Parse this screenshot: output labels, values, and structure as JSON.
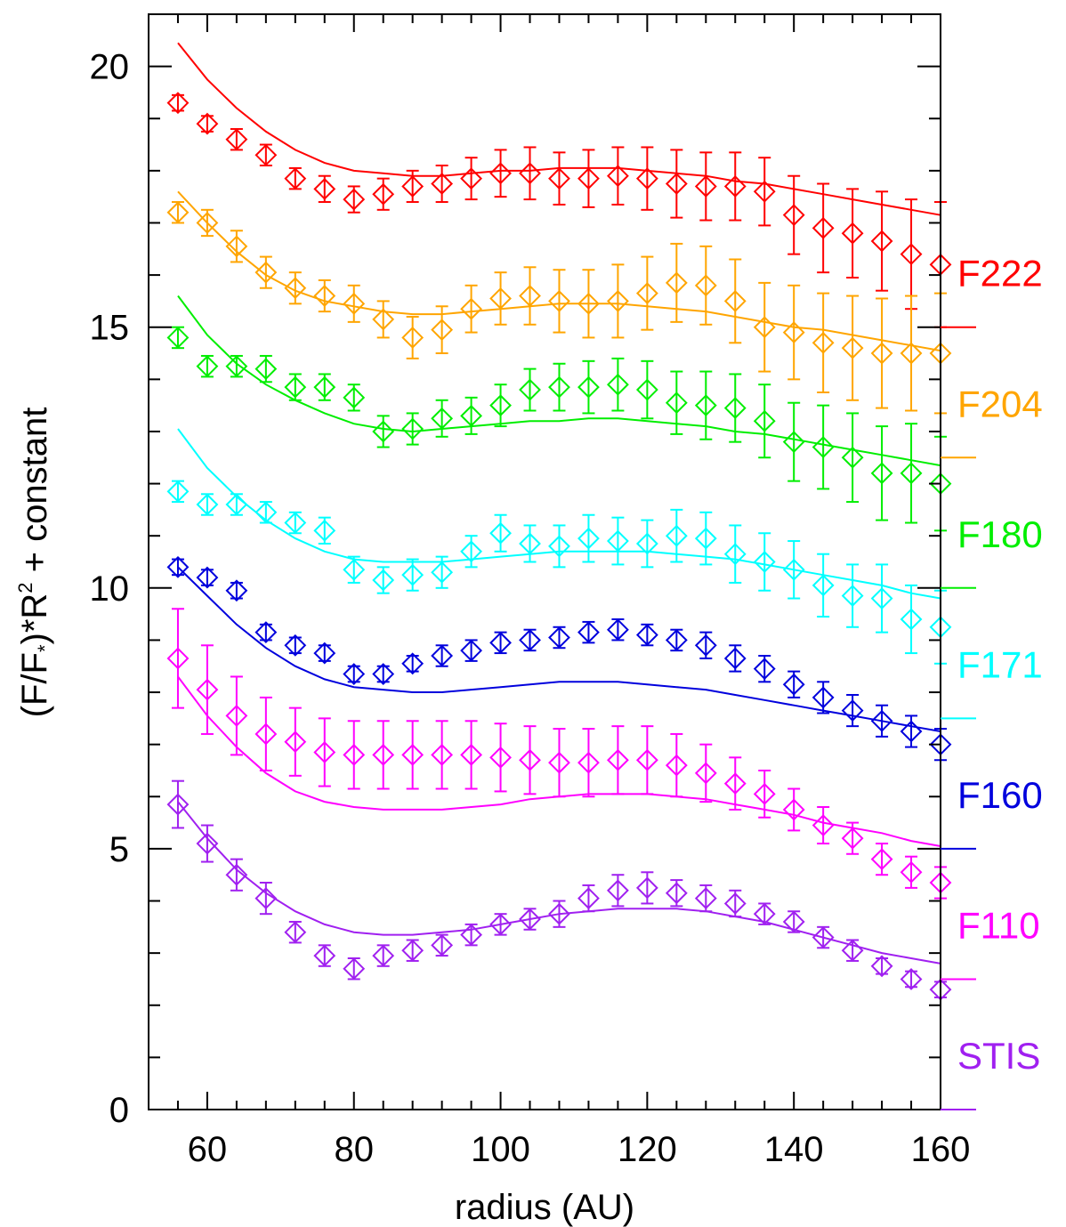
{
  "chart_data": {
    "type": "scatter",
    "title": "",
    "xlabel": "radius (AU)",
    "ylabel": {
      "main": "(F/F",
      "sub": "*",
      "mid": ")*R",
      "sup": "2",
      "tail": " + constant"
    },
    "xlim": [
      52,
      160
    ],
    "ylim": [
      0,
      21
    ],
    "xticks": [
      60,
      80,
      100,
      120,
      140,
      160
    ],
    "yticks": [
      0,
      5,
      10,
      15,
      20
    ],
    "x_minor_step": 4,
    "y_minor_step": 1,
    "grid": false,
    "legend_placement": "right",
    "x": [
      56,
      60,
      64,
      68,
      72,
      76,
      80,
      84,
      88,
      92,
      96,
      100,
      104,
      108,
      112,
      116,
      120,
      124,
      128,
      132,
      136,
      140,
      144,
      148,
      152,
      156,
      160
    ],
    "series": [
      {
        "name": "F222",
        "color": "#ff0000",
        "baseline": 15.0,
        "values": [
          19.3,
          18.9,
          18.6,
          18.3,
          17.85,
          17.65,
          17.45,
          17.55,
          17.7,
          17.75,
          17.85,
          17.95,
          17.95,
          17.85,
          17.85,
          17.9,
          17.85,
          17.75,
          17.7,
          17.7,
          17.6,
          17.15,
          16.9,
          16.8,
          16.65,
          16.4,
          16.2
        ],
        "errors": [
          0.15,
          0.15,
          0.2,
          0.2,
          0.2,
          0.25,
          0.25,
          0.3,
          0.3,
          0.35,
          0.4,
          0.45,
          0.5,
          0.5,
          0.55,
          0.55,
          0.6,
          0.65,
          0.65,
          0.65,
          0.65,
          0.75,
          0.85,
          0.85,
          0.95,
          1.05,
          1.2
        ],
        "model_x": [
          56,
          60,
          64,
          68,
          72,
          76,
          80,
          84,
          88,
          92,
          96,
          100,
          104,
          108,
          112,
          116,
          120,
          124,
          128,
          132,
          136,
          140,
          144,
          148,
          152,
          156,
          160
        ],
        "model_y": [
          20.45,
          19.75,
          19.2,
          18.75,
          18.4,
          18.15,
          18.0,
          17.95,
          17.9,
          17.9,
          17.95,
          18.0,
          18.0,
          18.05,
          18.05,
          18.05,
          18.0,
          17.95,
          17.9,
          17.8,
          17.75,
          17.65,
          17.55,
          17.45,
          17.35,
          17.25,
          17.15
        ]
      },
      {
        "name": "F204",
        "color": "#ffa500",
        "baseline": 12.5,
        "values": [
          17.2,
          17.0,
          16.55,
          16.05,
          15.75,
          15.6,
          15.45,
          15.15,
          14.8,
          14.95,
          15.35,
          15.55,
          15.6,
          15.5,
          15.45,
          15.5,
          15.65,
          15.85,
          15.8,
          15.5,
          15.0,
          14.9,
          14.7,
          14.6,
          14.5,
          14.5,
          14.5
        ],
        "errors": [
          0.2,
          0.25,
          0.3,
          0.3,
          0.3,
          0.3,
          0.35,
          0.35,
          0.4,
          0.45,
          0.45,
          0.5,
          0.55,
          0.6,
          0.65,
          0.7,
          0.7,
          0.75,
          0.75,
          0.8,
          0.85,
          0.9,
          0.95,
          1.0,
          1.05,
          1.1,
          1.15
        ],
        "model_x": [
          56,
          60,
          64,
          68,
          72,
          76,
          80,
          84,
          88,
          92,
          96,
          100,
          104,
          108,
          112,
          116,
          120,
          124,
          128,
          132,
          136,
          140,
          144,
          148,
          152,
          156,
          160
        ],
        "model_y": [
          17.6,
          17.0,
          16.45,
          16.0,
          15.7,
          15.5,
          15.4,
          15.3,
          15.25,
          15.25,
          15.3,
          15.35,
          15.4,
          15.45,
          15.45,
          15.45,
          15.4,
          15.35,
          15.3,
          15.2,
          15.1,
          15.0,
          14.95,
          14.85,
          14.75,
          14.65,
          14.55
        ]
      },
      {
        "name": "F180",
        "color": "#00ee00",
        "baseline": 10.0,
        "values": [
          14.8,
          14.25,
          14.25,
          14.2,
          13.85,
          13.85,
          13.65,
          13.0,
          13.05,
          13.25,
          13.3,
          13.5,
          13.8,
          13.85,
          13.85,
          13.9,
          13.8,
          13.55,
          13.5,
          13.45,
          13.2,
          12.8,
          12.7,
          12.5,
          12.2,
          12.2,
          12.0
        ],
        "errors": [
          0.2,
          0.2,
          0.2,
          0.25,
          0.25,
          0.25,
          0.25,
          0.3,
          0.3,
          0.35,
          0.35,
          0.4,
          0.4,
          0.45,
          0.5,
          0.5,
          0.55,
          0.6,
          0.65,
          0.65,
          0.7,
          0.75,
          0.8,
          0.85,
          0.9,
          0.95,
          0.9
        ],
        "model_x": [
          56,
          60,
          64,
          68,
          72,
          76,
          80,
          84,
          88,
          92,
          96,
          100,
          104,
          108,
          112,
          116,
          120,
          124,
          128,
          132,
          136,
          140,
          144,
          148,
          152,
          156,
          160
        ],
        "model_y": [
          15.6,
          14.85,
          14.3,
          13.9,
          13.6,
          13.35,
          13.15,
          13.05,
          13.0,
          13.05,
          13.1,
          13.15,
          13.2,
          13.2,
          13.25,
          13.25,
          13.2,
          13.15,
          13.1,
          13.0,
          12.95,
          12.85,
          12.75,
          12.65,
          12.55,
          12.45,
          12.35
        ]
      },
      {
        "name": "F171",
        "color": "#00ffff",
        "baseline": 7.5,
        "values": [
          11.85,
          11.6,
          11.6,
          11.45,
          11.25,
          11.1,
          10.35,
          10.15,
          10.25,
          10.3,
          10.7,
          11.05,
          10.85,
          10.8,
          10.95,
          10.9,
          10.85,
          11.0,
          10.95,
          10.65,
          10.5,
          10.35,
          10.05,
          9.85,
          9.8,
          9.4,
          9.25
        ],
        "errors": [
          0.2,
          0.2,
          0.2,
          0.2,
          0.2,
          0.25,
          0.25,
          0.25,
          0.3,
          0.3,
          0.3,
          0.35,
          0.35,
          0.4,
          0.45,
          0.45,
          0.45,
          0.5,
          0.5,
          0.55,
          0.55,
          0.55,
          0.6,
          0.6,
          0.65,
          0.65,
          0.7
        ],
        "model_x": [
          56,
          60,
          64,
          68,
          72,
          76,
          80,
          84,
          88,
          92,
          96,
          100,
          104,
          108,
          112,
          116,
          120,
          124,
          128,
          132,
          136,
          140,
          144,
          148,
          152,
          156,
          160
        ],
        "model_y": [
          13.05,
          12.3,
          11.75,
          11.3,
          10.95,
          10.7,
          10.55,
          10.5,
          10.5,
          10.5,
          10.55,
          10.6,
          10.65,
          10.7,
          10.7,
          10.7,
          10.7,
          10.65,
          10.6,
          10.55,
          10.45,
          10.35,
          10.25,
          10.15,
          10.05,
          9.9,
          9.8
        ]
      },
      {
        "name": "F160",
        "color": "#0000dd",
        "baseline": 5.0,
        "values": [
          10.4,
          10.2,
          9.95,
          9.15,
          8.9,
          8.75,
          8.35,
          8.35,
          8.55,
          8.7,
          8.8,
          8.95,
          9.0,
          9.05,
          9.15,
          9.2,
          9.1,
          9.0,
          8.9,
          8.65,
          8.45,
          8.15,
          7.9,
          7.65,
          7.45,
          7.25,
          7.0
        ],
        "errors": [
          0.15,
          0.15,
          0.15,
          0.15,
          0.15,
          0.15,
          0.15,
          0.15,
          0.15,
          0.2,
          0.2,
          0.2,
          0.2,
          0.2,
          0.2,
          0.2,
          0.2,
          0.2,
          0.25,
          0.25,
          0.25,
          0.25,
          0.3,
          0.3,
          0.3,
          0.3,
          0.3
        ],
        "model_x": [
          56,
          60,
          64,
          68,
          72,
          76,
          80,
          84,
          88,
          92,
          96,
          100,
          104,
          108,
          112,
          116,
          120,
          124,
          128,
          132,
          136,
          140,
          144,
          148,
          152,
          156,
          160
        ],
        "model_y": [
          10.4,
          9.85,
          9.3,
          8.85,
          8.5,
          8.25,
          8.1,
          8.05,
          8.0,
          8.0,
          8.05,
          8.1,
          8.15,
          8.2,
          8.2,
          8.2,
          8.15,
          8.1,
          8.05,
          7.95,
          7.85,
          7.75,
          7.65,
          7.55,
          7.45,
          7.35,
          7.25
        ]
      },
      {
        "name": "F110",
        "color": "#ff00ff",
        "baseline": 2.5,
        "values": [
          8.65,
          8.05,
          7.55,
          7.2,
          7.05,
          6.85,
          6.8,
          6.8,
          6.8,
          6.8,
          6.8,
          6.75,
          6.7,
          6.65,
          6.65,
          6.7,
          6.7,
          6.6,
          6.45,
          6.25,
          6.05,
          5.75,
          5.45,
          5.2,
          4.8,
          4.55,
          4.35
        ],
        "errors": [
          0.95,
          0.85,
          0.75,
          0.7,
          0.65,
          0.65,
          0.65,
          0.65,
          0.65,
          0.65,
          0.65,
          0.65,
          0.65,
          0.65,
          0.65,
          0.65,
          0.65,
          0.6,
          0.55,
          0.5,
          0.45,
          0.4,
          0.35,
          0.3,
          0.3,
          0.3,
          0.3
        ],
        "model_x": [
          56,
          60,
          64,
          68,
          72,
          76,
          80,
          84,
          88,
          92,
          96,
          100,
          104,
          108,
          112,
          116,
          120,
          124,
          128,
          132,
          136,
          140,
          144,
          148,
          152,
          156,
          160
        ],
        "model_y": [
          8.3,
          7.55,
          6.95,
          6.45,
          6.1,
          5.9,
          5.8,
          5.75,
          5.75,
          5.75,
          5.8,
          5.85,
          5.95,
          6.0,
          6.05,
          6.05,
          6.05,
          6.0,
          5.95,
          5.85,
          5.75,
          5.65,
          5.5,
          5.4,
          5.3,
          5.15,
          5.05
        ]
      },
      {
        "name": "STIS",
        "color": "#a020f0",
        "baseline": 0.0,
        "values": [
          5.85,
          5.1,
          4.5,
          4.05,
          3.4,
          2.95,
          2.7,
          2.95,
          3.05,
          3.15,
          3.35,
          3.55,
          3.65,
          3.75,
          4.05,
          4.2,
          4.25,
          4.15,
          4.05,
          3.95,
          3.75,
          3.6,
          3.3,
          3.05,
          2.75,
          2.5,
          2.3
        ],
        "errors": [
          0.45,
          0.35,
          0.3,
          0.3,
          0.2,
          0.2,
          0.2,
          0.2,
          0.2,
          0.2,
          0.2,
          0.2,
          0.2,
          0.25,
          0.25,
          0.3,
          0.3,
          0.25,
          0.25,
          0.25,
          0.2,
          0.2,
          0.2,
          0.2,
          0.15,
          0.15,
          0.15
        ],
        "model_x": [
          56,
          60,
          64,
          68,
          72,
          76,
          80,
          84,
          88,
          92,
          96,
          100,
          104,
          108,
          112,
          116,
          120,
          124,
          128,
          132,
          136,
          140,
          144,
          148,
          152,
          156,
          160
        ],
        "model_y": [
          5.9,
          5.2,
          4.6,
          4.15,
          3.8,
          3.55,
          3.4,
          3.35,
          3.35,
          3.4,
          3.45,
          3.55,
          3.65,
          3.75,
          3.8,
          3.85,
          3.85,
          3.85,
          3.8,
          3.7,
          3.6,
          3.45,
          3.3,
          3.15,
          3.0,
          2.9,
          2.8
        ]
      }
    ]
  }
}
